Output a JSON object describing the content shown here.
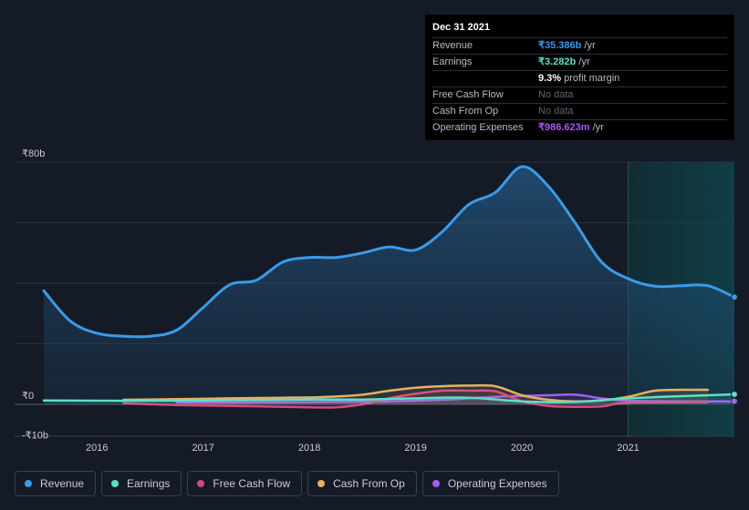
{
  "tooltip": {
    "date": "Dec 31 2021",
    "rows": [
      {
        "label": "Revenue",
        "value": "₹35.386b",
        "unit": " /yr",
        "color": "#3a9be8"
      },
      {
        "label": "Earnings",
        "value": "₹3.282b",
        "unit": " /yr",
        "color": "#5de0c8"
      },
      {
        "label": "",
        "value": "9.3%",
        "unit": " profit margin",
        "color": "#ffffff"
      },
      {
        "label": "Free Cash Flow",
        "value": "No data",
        "unit": "",
        "color": ""
      },
      {
        "label": "Cash From Op",
        "value": "No data",
        "unit": "",
        "color": ""
      },
      {
        "label": "Operating Expenses",
        "value": "₹986.623m",
        "unit": " /yr",
        "color": "#a65cf0"
      }
    ]
  },
  "legend": [
    {
      "label": "Revenue",
      "color": "#3a9be8"
    },
    {
      "label": "Earnings",
      "color": "#5de0c8"
    },
    {
      "label": "Free Cash Flow",
      "color": "#d4477f"
    },
    {
      "label": "Cash From Op",
      "color": "#e8b060"
    },
    {
      "label": "Operating Expenses",
      "color": "#a65cf0"
    }
  ],
  "chart_data": {
    "type": "area",
    "title": "",
    "xlabel": "",
    "ylabel": "",
    "y_tick_labels": [
      "₹80b",
      "₹0",
      "-₹10b"
    ],
    "x_tick_labels": [
      "2016",
      "2017",
      "2018",
      "2019",
      "2020",
      "2021"
    ],
    "ylim": [
      -10,
      80
    ],
    "xlim": [
      2015.5,
      2022.0
    ],
    "highlight_start": 2021.0,
    "grid": true,
    "legend_position": "bottom",
    "series": [
      {
        "name": "Revenue",
        "color": "#3a9be8",
        "x": [
          2015.5,
          2015.75,
          2016.0,
          2016.25,
          2016.5,
          2016.75,
          2017.0,
          2017.25,
          2017.5,
          2017.75,
          2018.0,
          2018.25,
          2018.5,
          2018.75,
          2019.0,
          2019.25,
          2019.5,
          2019.75,
          2020.0,
          2020.25,
          2020.5,
          2020.75,
          2021.0,
          2021.25,
          2021.5,
          2021.75,
          2022.0
        ],
        "values": [
          37.5,
          27.5,
          23.5,
          22.5,
          22.5,
          24.5,
          32.0,
          39.5,
          41.0,
          47.0,
          48.5,
          48.5,
          50.0,
          52.0,
          51.0,
          57.0,
          66.0,
          70.0,
          78.5,
          72.0,
          60.0,
          47.0,
          41.5,
          39.0,
          39.2,
          39.2,
          35.4
        ]
      },
      {
        "name": "Earnings",
        "color": "#5de0c8",
        "x": [
          2015.5,
          2016.0,
          2016.5,
          2017.0,
          2017.5,
          2018.0,
          2018.5,
          2019.0,
          2019.5,
          2020.0,
          2020.5,
          2021.0,
          2021.5,
          2022.0
        ],
        "values": [
          1.3,
          1.2,
          1.2,
          1.3,
          1.4,
          1.6,
          1.6,
          2.0,
          2.2,
          1.0,
          0.8,
          2.0,
          2.7,
          3.3
        ]
      },
      {
        "name": "Free Cash Flow",
        "color": "#d4477f",
        "x": [
          2016.25,
          2016.75,
          2017.25,
          2017.75,
          2018.0,
          2018.25,
          2018.5,
          2018.75,
          2019.0,
          2019.25,
          2019.5,
          2019.75,
          2020.0,
          2020.25,
          2020.5,
          2020.75,
          2021.0,
          2021.75
        ],
        "values": [
          0.3,
          -0.2,
          -0.5,
          -0.8,
          -1.0,
          -1.0,
          0.0,
          2.0,
          3.5,
          4.5,
          4.5,
          4.3,
          1.0,
          -0.5,
          -0.8,
          -0.7,
          0.5,
          0.8
        ]
      },
      {
        "name": "Cash From Op",
        "color": "#e8b060",
        "x": [
          2016.25,
          2016.75,
          2017.25,
          2017.75,
          2018.0,
          2018.25,
          2018.5,
          2018.75,
          2019.0,
          2019.25,
          2019.5,
          2019.75,
          2020.0,
          2020.25,
          2020.5,
          2020.75,
          2021.0,
          2021.25,
          2021.5,
          2021.75
        ],
        "values": [
          1.5,
          1.7,
          2.0,
          2.2,
          2.3,
          2.6,
          3.2,
          4.5,
          5.5,
          6.0,
          6.2,
          6.0,
          3.0,
          1.5,
          1.0,
          1.3,
          2.5,
          4.5,
          4.8,
          4.8
        ]
      },
      {
        "name": "Operating Expenses",
        "color": "#a65cf0",
        "x": [
          2016.75,
          2017.25,
          2017.75,
          2018.25,
          2018.75,
          2019.25,
          2019.5,
          2019.75,
          2020.0,
          2020.25,
          2020.5,
          2020.75,
          2021.0,
          2021.5,
          2022.0
        ],
        "values": [
          0.6,
          0.6,
          0.7,
          0.8,
          1.0,
          1.5,
          2.0,
          2.5,
          2.8,
          3.0,
          3.2,
          2.0,
          1.2,
          1.0,
          1.0
        ]
      }
    ]
  }
}
